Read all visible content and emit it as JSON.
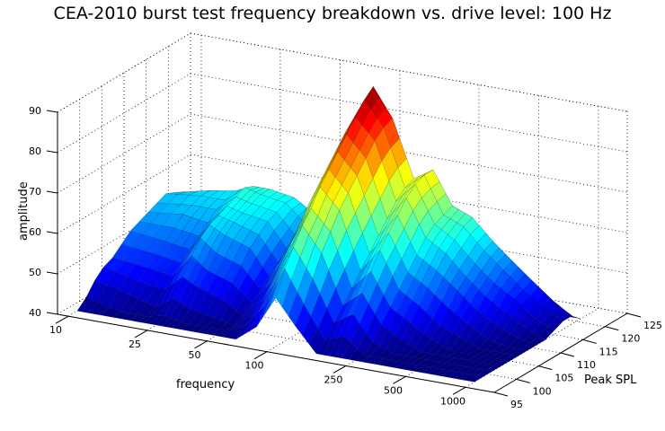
{
  "chart_data": {
    "type": "surface",
    "title": "CEA-2010 burst test frequency breakdown vs. drive level: 100 Hz",
    "xlabel": "frequency",
    "ylabel": "Peak SPL",
    "zlabel": "amplitude",
    "x_scale": "log",
    "xlim": [
      10,
      1000
    ],
    "ylim": [
      95,
      125
    ],
    "zlim": [
      40,
      90
    ],
    "x_ticks": [
      "10",
      "25",
      "50",
      "100",
      "250",
      "500",
      "1000"
    ],
    "y_ticks": [
      "95",
      "100",
      "105",
      "110",
      "115",
      "120",
      "125"
    ],
    "z_ticks": [
      "40",
      "50",
      "60",
      "70",
      "80",
      "90"
    ],
    "grid": true,
    "colormap": "jet",
    "frequencies": [
      10,
      15,
      20,
      25,
      30,
      40,
      50,
      63,
      80,
      100,
      125,
      160,
      200,
      250,
      315,
      400,
      500,
      630,
      800,
      1000
    ],
    "peak_spl": [
      97,
      99,
      101,
      103,
      105,
      107,
      109,
      111,
      113,
      115,
      117,
      119,
      121
    ],
    "amplitude": [
      [
        40,
        40,
        40,
        40,
        40,
        40,
        40,
        40,
        44,
        52,
        46,
        40,
        40,
        40,
        40,
        40,
        40,
        40,
        40,
        40
      ],
      [
        42,
        40,
        40,
        41,
        40,
        40,
        40,
        42,
        48,
        58,
        50,
        42,
        44,
        40,
        40,
        40,
        40,
        40,
        40,
        40
      ],
      [
        45,
        43,
        41,
        44,
        42,
        41,
        40,
        44,
        52,
        62,
        55,
        45,
        48,
        42,
        40,
        40,
        40,
        40,
        40,
        40
      ],
      [
        47,
        45,
        44,
        48,
        46,
        44,
        41,
        46,
        56,
        66,
        60,
        48,
        52,
        45,
        42,
        40,
        40,
        40,
        40,
        40
      ],
      [
        48,
        47,
        46,
        52,
        49,
        47,
        43,
        49,
        60,
        69,
        64,
        51,
        56,
        48,
        45,
        42,
        40,
        40,
        40,
        40
      ],
      [
        50,
        49,
        48,
        55,
        52,
        50,
        45,
        52,
        63,
        73,
        68,
        54,
        60,
        51,
        48,
        44,
        42,
        40,
        40,
        40
      ],
      [
        52,
        51,
        50,
        57,
        55,
        53,
        47,
        55,
        67,
        76,
        71,
        57,
        63,
        54,
        51,
        47,
        44,
        41,
        40,
        40
      ],
      [
        53,
        53,
        52,
        58,
        57,
        55,
        49,
        58,
        70,
        79,
        74,
        60,
        66,
        57,
        54,
        50,
        46,
        43,
        41,
        40
      ],
      [
        54,
        55,
        54,
        59,
        58,
        57,
        51,
        61,
        73,
        82,
        77,
        63,
        69,
        60,
        57,
        52,
        48,
        45,
        42,
        40
      ],
      [
        55,
        56,
        56,
        60,
        59,
        58,
        53,
        63,
        76,
        85,
        80,
        66,
        71,
        62,
        59,
        54,
        50,
        47,
        43,
        41
      ],
      [
        56,
        57,
        57,
        61,
        60,
        59,
        55,
        65,
        79,
        88,
        82,
        68,
        72,
        63,
        61,
        56,
        52,
        48,
        44,
        42
      ],
      [
        55,
        57,
        58,
        60,
        60,
        59,
        56,
        66,
        80,
        90,
        83,
        69,
        72,
        64,
        62,
        57,
        53,
        49,
        45,
        42
      ],
      [
        40,
        40,
        40,
        40,
        40,
        40,
        40,
        40,
        40,
        40,
        40,
        40,
        40,
        40,
        40,
        40,
        40,
        40,
        40,
        40
      ]
    ]
  }
}
